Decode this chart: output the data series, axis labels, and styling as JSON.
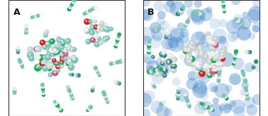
{
  "figure_width": 3.78,
  "figure_height": 1.64,
  "dpi": 100,
  "panel_A_label": "A",
  "panel_B_label": "B",
  "bg_color_A": "#ffffff",
  "bg_color_B": "#ffffff",
  "border_color": "#333333",
  "label_fontsize": 9,
  "label_color": "#111111",
  "molecule_colors": {
    "teal": "#7cc4b8",
    "light_gray": "#c8d0d0",
    "pink": "#c06080",
    "red": "#cc2222",
    "green": "#22aa55",
    "white": "#e8ecec",
    "dark_teal": "#3a8888",
    "blue_water": "#5599cc"
  },
  "seed": 42,
  "n_small_molecules_A": 18,
  "n_large_cluster_A": 80,
  "n_small_molecules_B": 22,
  "n_large_cluster_B": 75,
  "n_water_circles_B": 120,
  "water_color": "#4488cc"
}
